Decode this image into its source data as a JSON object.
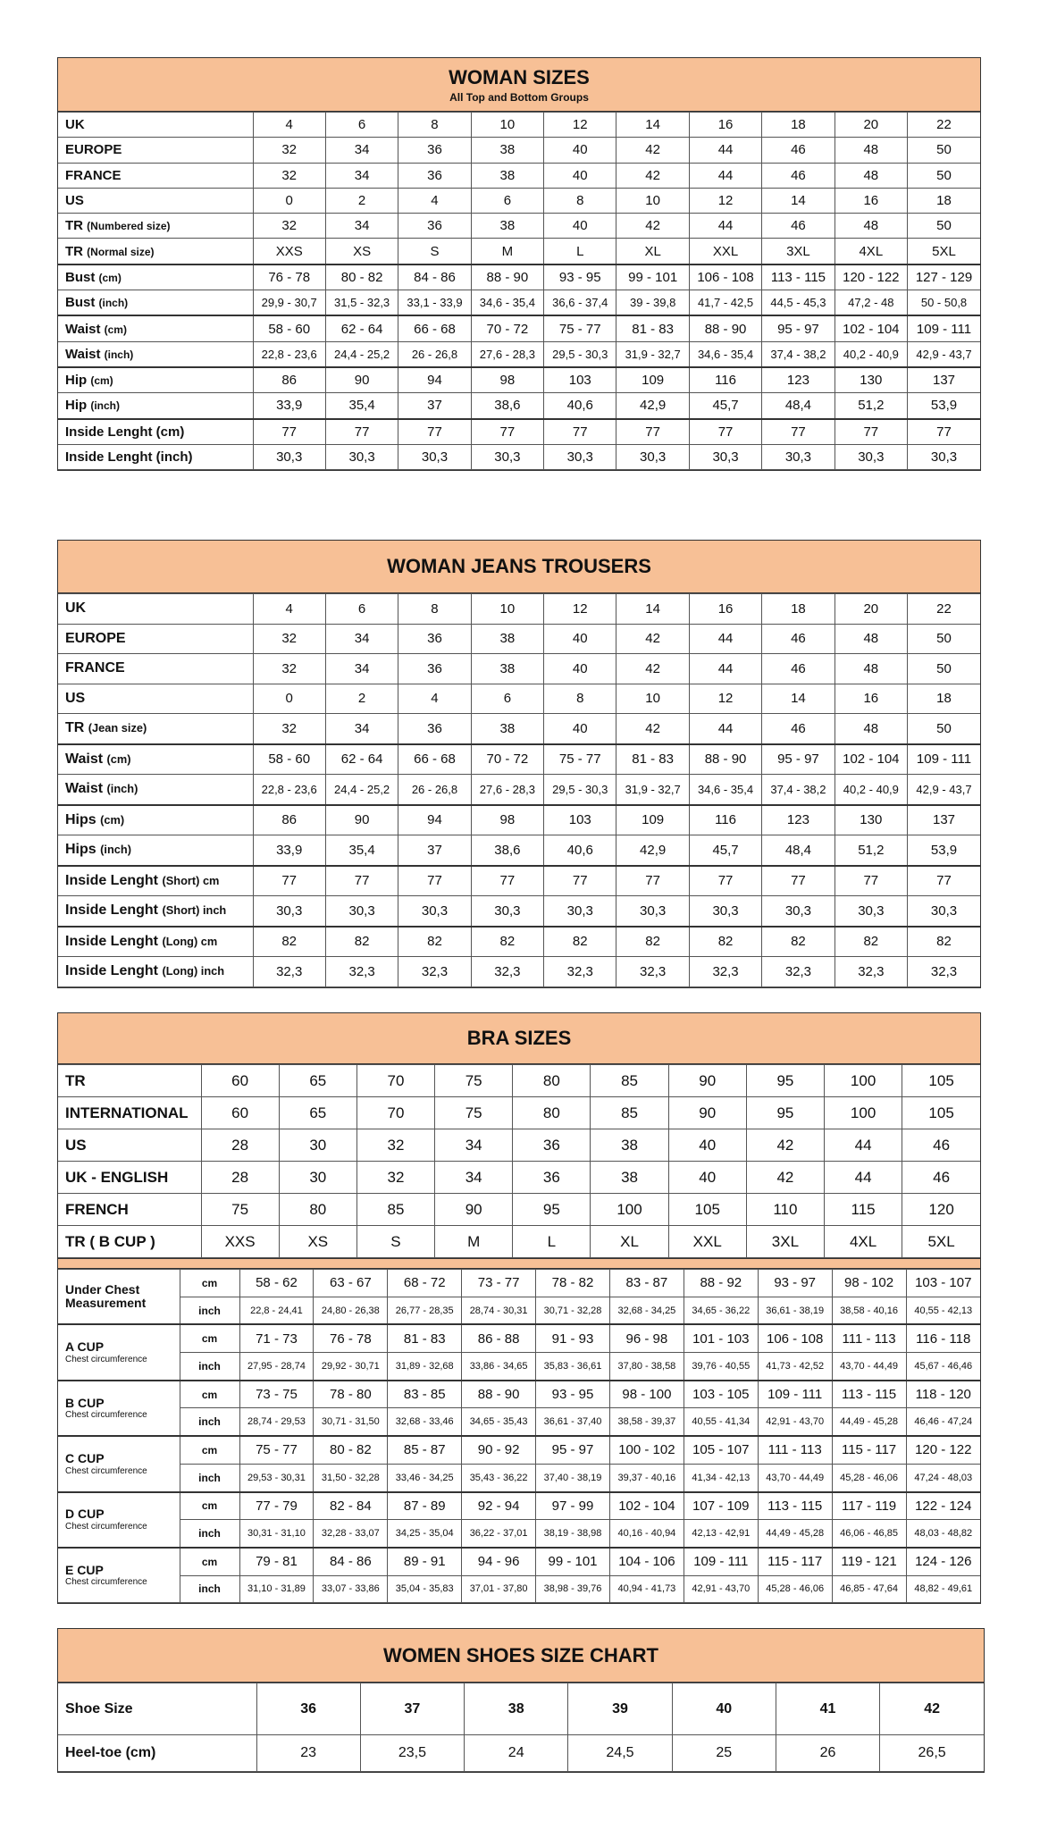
{
  "colors": {
    "header_bg": "#f7c096",
    "border": "#333333"
  },
  "woman_sizes": {
    "title": "WOMAN SIZES",
    "subtitle": "All Top and Bottom Groups",
    "rows": [
      {
        "label": "UK",
        "unit": "",
        "values": [
          "4",
          "6",
          "8",
          "10",
          "12",
          "14",
          "16",
          "18",
          "20",
          "22"
        ]
      },
      {
        "label": "EUROPE",
        "unit": "",
        "values": [
          "32",
          "34",
          "36",
          "38",
          "40",
          "42",
          "44",
          "46",
          "48",
          "50"
        ]
      },
      {
        "label": "FRANCE",
        "unit": "",
        "values": [
          "32",
          "34",
          "36",
          "38",
          "40",
          "42",
          "44",
          "46",
          "48",
          "50"
        ]
      },
      {
        "label": "US",
        "unit": "",
        "values": [
          "0",
          "2",
          "4",
          "6",
          "8",
          "10",
          "12",
          "14",
          "16",
          "18"
        ]
      },
      {
        "label": "TR",
        "unit": "(Numbered size)",
        "values": [
          "32",
          "34",
          "36",
          "38",
          "40",
          "42",
          "44",
          "46",
          "48",
          "50"
        ]
      },
      {
        "label": "TR",
        "unit": "(Normal size)",
        "values": [
          "XXS",
          "XS",
          "S",
          "M",
          "L",
          "XL",
          "XXL",
          "3XL",
          "4XL",
          "5XL"
        ]
      },
      {
        "label": "Bust",
        "unit": "(cm)",
        "group": true,
        "values": [
          "76 - 78",
          "80 - 82",
          "84 - 86",
          "88 - 90",
          "93 - 95",
          "99 - 101",
          "106 - 108",
          "113 - 115",
          "120 - 122",
          "127 - 129"
        ]
      },
      {
        "label": "Bust",
        "unit": "(inch)",
        "small": true,
        "values": [
          "29,9 - 30,7",
          "31,5 - 32,3",
          "33,1 - 33,9",
          "34,6 - 35,4",
          "36,6 - 37,4",
          "39 - 39,8",
          "41,7 - 42,5",
          "44,5 - 45,3",
          "47,2 - 48",
          "50 - 50,8"
        ]
      },
      {
        "label": "Waist",
        "unit": "(cm)",
        "group": true,
        "values": [
          "58 - 60",
          "62 - 64",
          "66 - 68",
          "70 - 72",
          "75 - 77",
          "81 - 83",
          "88 - 90",
          "95 - 97",
          "102 - 104",
          "109 - 111"
        ]
      },
      {
        "label": "Waist",
        "unit": "(inch)",
        "small": true,
        "values": [
          "22,8 - 23,6",
          "24,4 - 25,2",
          "26 - 26,8",
          "27,6 - 28,3",
          "29,5 - 30,3",
          "31,9 - 32,7",
          "34,6 - 35,4",
          "37,4 - 38,2",
          "40,2 - 40,9",
          "42,9 - 43,7"
        ]
      },
      {
        "label": "Hip",
        "unit": "(cm)",
        "group": true,
        "values": [
          "86",
          "90",
          "94",
          "98",
          "103",
          "109",
          "116",
          "123",
          "130",
          "137"
        ]
      },
      {
        "label": "Hip",
        "unit": "(inch)",
        "values": [
          "33,9",
          "35,4",
          "37",
          "38,6",
          "40,6",
          "42,9",
          "45,7",
          "48,4",
          "51,2",
          "53,9"
        ]
      },
      {
        "label": "Inside Lenght (cm)",
        "unit": "",
        "group": true,
        "values": [
          "77",
          "77",
          "77",
          "77",
          "77",
          "77",
          "77",
          "77",
          "77",
          "77"
        ]
      },
      {
        "label": "Inside Lenght (inch)",
        "unit": "",
        "values": [
          "30,3",
          "30,3",
          "30,3",
          "30,3",
          "30,3",
          "30,3",
          "30,3",
          "30,3",
          "30,3",
          "30,3"
        ]
      }
    ]
  },
  "woman_jeans": {
    "title": "WOMAN JEANS TROUSERS",
    "rows": [
      {
        "label": "UK",
        "unit": "",
        "values": [
          "4",
          "6",
          "8",
          "10",
          "12",
          "14",
          "16",
          "18",
          "20",
          "22"
        ]
      },
      {
        "label": "EUROPE",
        "unit": "",
        "values": [
          "32",
          "34",
          "36",
          "38",
          "40",
          "42",
          "44",
          "46",
          "48",
          "50"
        ]
      },
      {
        "label": "FRANCE",
        "unit": "",
        "values": [
          "32",
          "34",
          "36",
          "38",
          "40",
          "42",
          "44",
          "46",
          "48",
          "50"
        ]
      },
      {
        "label": "US",
        "unit": "",
        "values": [
          "0",
          "2",
          "4",
          "6",
          "8",
          "10",
          "12",
          "14",
          "16",
          "18"
        ]
      },
      {
        "label": "TR",
        "unit": "(Jean size)",
        "values": [
          "32",
          "34",
          "36",
          "38",
          "40",
          "42",
          "44",
          "46",
          "48",
          "50"
        ]
      },
      {
        "label": "Waist",
        "unit": "(cm)",
        "group": true,
        "values": [
          "58 - 60",
          "62 - 64",
          "66 - 68",
          "70 - 72",
          "75 - 77",
          "81 - 83",
          "88 - 90",
          "95 - 97",
          "102 - 104",
          "109 - 111"
        ]
      },
      {
        "label": "Waist",
        "unit": "(inch)",
        "small": true,
        "values": [
          "22,8 - 23,6",
          "24,4 - 25,2",
          "26 - 26,8",
          "27,6 - 28,3",
          "29,5 - 30,3",
          "31,9 - 32,7",
          "34,6 - 35,4",
          "37,4 - 38,2",
          "40,2 - 40,9",
          "42,9 - 43,7"
        ]
      },
      {
        "label": "Hips",
        "unit": "(cm)",
        "group": true,
        "values": [
          "86",
          "90",
          "94",
          "98",
          "103",
          "109",
          "116",
          "123",
          "130",
          "137"
        ]
      },
      {
        "label": "Hips",
        "unit": "(inch)",
        "values": [
          "33,9",
          "35,4",
          "37",
          "38,6",
          "40,6",
          "42,9",
          "45,7",
          "48,4",
          "51,2",
          "53,9"
        ]
      },
      {
        "label": "Inside Lenght",
        "unit": "(Short) cm",
        "group": true,
        "values": [
          "77",
          "77",
          "77",
          "77",
          "77",
          "77",
          "77",
          "77",
          "77",
          "77"
        ]
      },
      {
        "label": "Inside Lenght",
        "unit": "(Short) inch",
        "values": [
          "30,3",
          "30,3",
          "30,3",
          "30,3",
          "30,3",
          "30,3",
          "30,3",
          "30,3",
          "30,3",
          "30,3"
        ]
      },
      {
        "label": "Inside Lenght",
        "unit": "(Long) cm",
        "group": true,
        "values": [
          "82",
          "82",
          "82",
          "82",
          "82",
          "82",
          "82",
          "82",
          "82",
          "82"
        ]
      },
      {
        "label": "Inside Lenght",
        "unit": "(Long) inch",
        "values": [
          "32,3",
          "32,3",
          "32,3",
          "32,3",
          "32,3",
          "32,3",
          "32,3",
          "32,3",
          "32,3",
          "32,3"
        ]
      }
    ]
  },
  "bra_sizes": {
    "title": "BRA SIZES",
    "rows": [
      {
        "label": "TR",
        "values": [
          "60",
          "65",
          "70",
          "75",
          "80",
          "85",
          "90",
          "95",
          "100",
          "105"
        ]
      },
      {
        "label": "INTERNATIONAL",
        "values": [
          "60",
          "65",
          "70",
          "75",
          "80",
          "85",
          "90",
          "95",
          "100",
          "105"
        ]
      },
      {
        "label": "US",
        "values": [
          "28",
          "30",
          "32",
          "34",
          "36",
          "38",
          "40",
          "42",
          "44",
          "46"
        ]
      },
      {
        "label": "UK - ENGLISH",
        "values": [
          "28",
          "30",
          "32",
          "34",
          "36",
          "38",
          "40",
          "42",
          "44",
          "46"
        ]
      },
      {
        "label": "FRENCH",
        "values": [
          "75",
          "80",
          "85",
          "90",
          "95",
          "100",
          "105",
          "110",
          "115",
          "120"
        ]
      },
      {
        "label": "TR ( B CUP )",
        "values": [
          "XXS",
          "XS",
          "S",
          "M",
          "L",
          "XL",
          "XXL",
          "3XL",
          "4XL",
          "5XL"
        ]
      }
    ],
    "measurements": [
      {
        "label": "Under Chest",
        "sublabel": "Measurement",
        "sub_bold": true,
        "cm_unit": "cm",
        "inch_unit": "inch",
        "cm": [
          "58 - 62",
          "63 - 67",
          "68 - 72",
          "73 - 77",
          "78 - 82",
          "83 - 87",
          "88 - 92",
          "93 - 97",
          "98 - 102",
          "103 - 107"
        ],
        "inch": [
          "22,8 - 24,41",
          "24,80 - 26,38",
          "26,77 - 28,35",
          "28,74 - 30,31",
          "30,71 - 32,28",
          "32,68 - 34,25",
          "34,65 - 36,22",
          "36,61 - 38,19",
          "38,58 - 40,16",
          "40,55 - 42,13"
        ]
      },
      {
        "label": "A CUP",
        "sublabel": "Chest circumference",
        "cm_unit": "cm",
        "inch_unit": "inch",
        "cm": [
          "71 - 73",
          "76 - 78",
          "81 - 83",
          "86 - 88",
          "91 - 93",
          "96 - 98",
          "101 - 103",
          "106 - 108",
          "111 - 113",
          "116 - 118"
        ],
        "inch": [
          "27,95 - 28,74",
          "29,92 - 30,71",
          "31,89 - 32,68",
          "33,86 - 34,65",
          "35,83 - 36,61",
          "37,80 - 38,58",
          "39,76 - 40,55",
          "41,73 - 42,52",
          "43,70 - 44,49",
          "45,67 - 46,46"
        ]
      },
      {
        "label": "B CUP",
        "sublabel": "Chest circumference",
        "cm_unit": "cm",
        "inch_unit": "inch",
        "cm": [
          "73 - 75",
          "78 - 80",
          "83 - 85",
          "88 - 90",
          "93 - 95",
          "98 - 100",
          "103 - 105",
          "109 - 111",
          "113 - 115",
          "118 - 120"
        ],
        "inch": [
          "28,74 - 29,53",
          "30,71 - 31,50",
          "32,68 - 33,46",
          "34,65 - 35,43",
          "36,61 - 37,40",
          "38,58 - 39,37",
          "40,55 - 41,34",
          "42,91 - 43,70",
          "44,49 - 45,28",
          "46,46 - 47,24"
        ]
      },
      {
        "label": "C CUP",
        "sublabel": "Chest circumference",
        "cm_unit": "cm",
        "inch_unit": "inch",
        "cm": [
          "75 - 77",
          "80 - 82",
          "85 - 87",
          "90 - 92",
          "95 - 97",
          "100 - 102",
          "105 - 107",
          "111 - 113",
          "115 - 117",
          "120 - 122"
        ],
        "inch": [
          "29,53 - 30,31",
          "31,50 - 32,28",
          "33,46 - 34,25",
          "35,43 - 36,22",
          "37,40 - 38,19",
          "39,37 - 40,16",
          "41,34 - 42,13",
          "43,70 - 44,49",
          "45,28 - 46,06",
          "47,24 - 48,03"
        ]
      },
      {
        "label": "D CUP",
        "sublabel": "Chest circumference",
        "cm_unit": "cm",
        "inch_unit": "inch",
        "cm": [
          "77 - 79",
          "82 - 84",
          "87 - 89",
          "92 - 94",
          "97 - 99",
          "102 - 104",
          "107 - 109",
          "113 - 115",
          "117 - 119",
          "122 - 124"
        ],
        "inch": [
          "30,31 - 31,10",
          "32,28 - 33,07",
          "34,25 - 35,04",
          "36,22 - 37,01",
          "38,19 - 38,98",
          "40,16 - 40,94",
          "42,13 - 42,91",
          "44,49 - 45,28",
          "46,06 - 46,85",
          "48,03 - 48,82"
        ]
      },
      {
        "label": "E CUP",
        "sublabel": "Chest circumference",
        "cm_unit": "cm",
        "inch_unit": "inch",
        "cm": [
          "79 - 81",
          "84 - 86",
          "89 - 91",
          "94 - 96",
          "99 - 101",
          "104 - 106",
          "109 - 111",
          "115 - 117",
          "119 - 121",
          "124 - 126"
        ],
        "inch": [
          "31,10 - 31,89",
          "33,07 - 33,86",
          "35,04 - 35,83",
          "37,01 - 37,80",
          "38,98 - 39,76",
          "40,94 - 41,73",
          "42,91 - 43,70",
          "45,28 - 46,06",
          "46,85 - 47,64",
          "48,82 - 49,61"
        ]
      }
    ]
  },
  "shoes": {
    "title": "WOMEN SHOES SIZE CHART",
    "rows": [
      {
        "label": "Shoe Size",
        "values": [
          "36",
          "37",
          "38",
          "39",
          "40",
          "41",
          "42"
        ]
      },
      {
        "label": "Heel-toe (cm)",
        "values": [
          "23",
          "23,5",
          "24",
          "24,5",
          "25",
          "26",
          "26,5"
        ]
      }
    ]
  }
}
